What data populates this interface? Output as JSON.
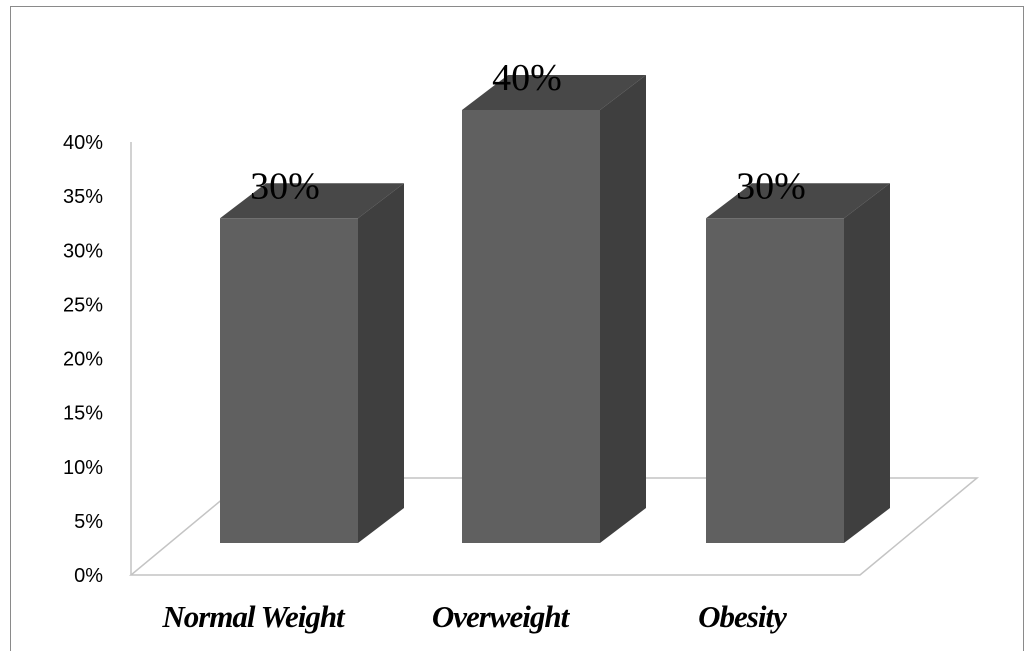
{
  "chart_data": {
    "type": "bar",
    "categories": [
      "Normal Weight",
      "Overweight",
      "Obesity"
    ],
    "values": [
      30,
      40,
      30
    ],
    "data_labels": [
      "30%",
      "40%",
      "30%"
    ],
    "y_ticks": [
      "0%",
      "5%",
      "10%",
      "15%",
      "20%",
      "25%",
      "30%",
      "35%",
      "40%"
    ],
    "ylim": [
      0,
      40
    ],
    "title": "",
    "xlabel": "",
    "ylabel": "",
    "grid": false,
    "style": "3d-column",
    "colors": {
      "front": "#606060",
      "side": "#3f3f3f",
      "top": "#484848",
      "floor": "#ffffff",
      "axis": "#c4c4c4"
    }
  }
}
